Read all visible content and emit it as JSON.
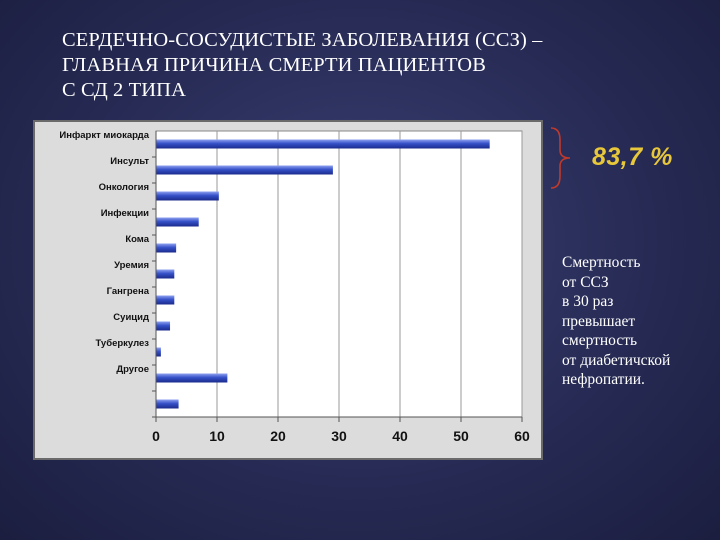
{
  "title_lines": [
    "СЕРДЕЧНО-СОСУДИСТЫЕ ЗАБОЛЕВАНИЯ (ССЗ) –",
    "ГЛАВНАЯ ПРИЧИНА СМЕРТИ ПАЦИЕНТОВ",
    "С СД 2 ТИПА"
  ],
  "highlight": "83,7 %",
  "note_lines": [
    "Смертность",
    "от ССЗ",
    "в 30 раз",
    "превышает",
    "смертность",
    "от диабетичской",
    "нефропатии."
  ],
  "colors": {
    "background": "#272b55",
    "bar_dark": "#1b2a8c",
    "bar_light": "#8fa2f0",
    "highlight": "#e8c83a",
    "brace": "#c0392b"
  },
  "chart_data": {
    "type": "bar",
    "orientation": "horizontal",
    "categories": [
      "Инфаркт миокарда",
      "Инсульт",
      "Онкология",
      "Инфекции",
      "Кома",
      "Уремия",
      "Гангрена",
      "Суицид",
      "Туберкулез",
      "Другое",
      ""
    ],
    "values": [
      54.7,
      29,
      10.3,
      7,
      3.3,
      3,
      3,
      2.3,
      0.8,
      11.7,
      3.7
    ],
    "xlim": [
      0,
      60
    ],
    "xticks": [
      "0",
      "10",
      "20",
      "30",
      "40",
      "50",
      "60"
    ],
    "grid": true,
    "legend": "none"
  }
}
